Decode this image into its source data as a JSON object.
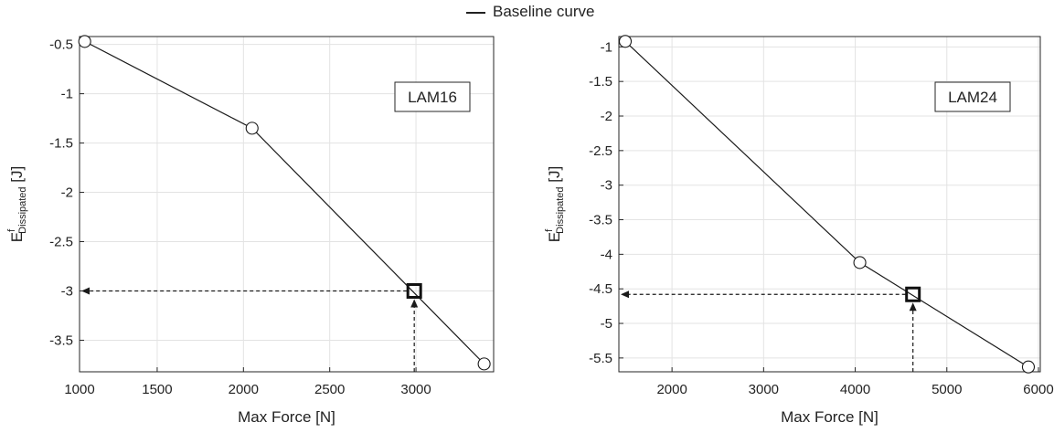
{
  "legend": {
    "label": "Baseline curve"
  },
  "chart_data": [
    {
      "type": "line",
      "name": "LAM16",
      "xlabel": "Max Force [N]",
      "ylabel_main": "E",
      "ylabel_sup": "f",
      "ylabel_sub": "Dissipated",
      "ylabel_unit": " [J]",
      "xlim": [
        1050,
        3450
      ],
      "ylim": [
        -3.82,
        -0.42
      ],
      "xticks": [
        1000,
        1500,
        2000,
        2500,
        3000
      ],
      "xtick_labels": [
        "1000",
        "1500",
        "2000",
        "2500",
        "3000"
      ],
      "yticks": [
        -0.5,
        -1,
        -1.5,
        -2,
        -2.5,
        -3,
        -3.5
      ],
      "ytick_labels": [
        "-0.5",
        "-1",
        "-1.5",
        "-2",
        "-2.5",
        "-3",
        "-3.5"
      ],
      "grid": true,
      "series": [
        {
          "x": [
            1080,
            2050,
            3395
          ],
          "y": [
            -0.47,
            -1.35,
            -3.74
          ]
        }
      ],
      "marked_point": {
        "x": 2990,
        "y": -3.0
      }
    },
    {
      "type": "line",
      "name": "LAM24",
      "xlabel": "Max Force [N]",
      "ylabel_main": "E",
      "ylabel_sup": "f",
      "ylabel_sub": "Dissipated",
      "ylabel_unit": " [J]",
      "xlim": [
        1420,
        6020
      ],
      "ylim": [
        -5.7,
        -0.85
      ],
      "xticks": [
        2000,
        3000,
        4000,
        5000,
        6000
      ],
      "xtick_labels": [
        "2000",
        "3000",
        "4000",
        "5000",
        "6000"
      ],
      "yticks": [
        -1,
        -1.5,
        -2,
        -2.5,
        -3,
        -3.5,
        -4,
        -4.5,
        -5,
        -5.5
      ],
      "ytick_labels": [
        "-1",
        "-1.5",
        "-2",
        "-2.5",
        "-3",
        "-3.5",
        "-4",
        "-4.5",
        "-5",
        "-5.5"
      ],
      "grid": true,
      "series": [
        {
          "x": [
            1490,
            4050,
            5890
          ],
          "y": [
            -0.92,
            -4.12,
            -5.63
          ]
        }
      ],
      "marked_point": {
        "x": 4630,
        "y": -4.58
      }
    }
  ]
}
